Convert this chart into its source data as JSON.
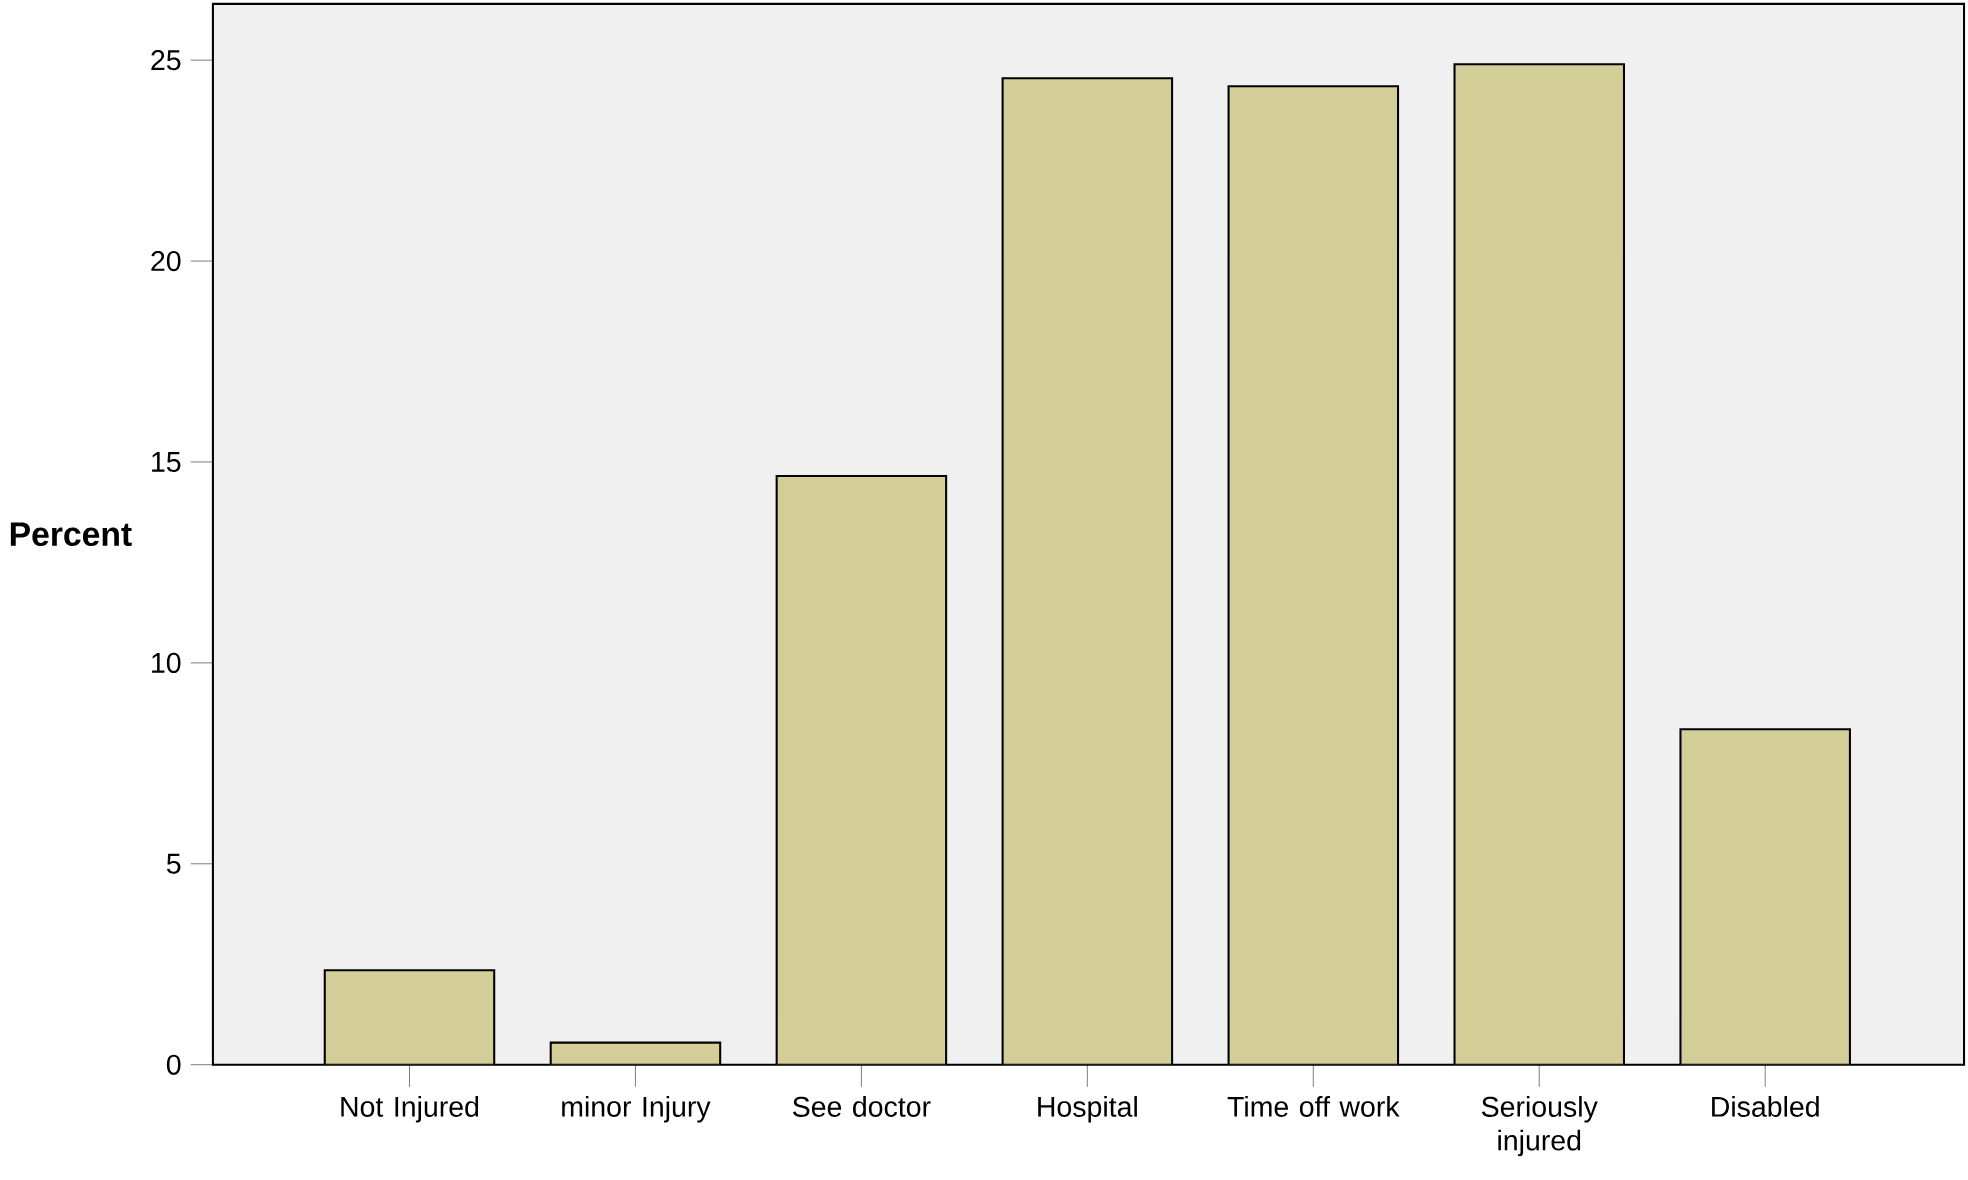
{
  "chart_data": {
    "type": "bar",
    "ylabel": "Percent",
    "categories": [
      "Not Injured",
      "minor Injury",
      "See doctor",
      "Hospital",
      "Time off work",
      "Seriously injured",
      "Disabled"
    ],
    "values": [
      2.35,
      0.55,
      14.65,
      24.55,
      24.35,
      24.9,
      8.35
    ],
    "color": "#d3cd98",
    "ylim": [
      0,
      26.4
    ],
    "yticks": [
      0,
      5,
      10,
      15,
      20,
      25
    ]
  }
}
